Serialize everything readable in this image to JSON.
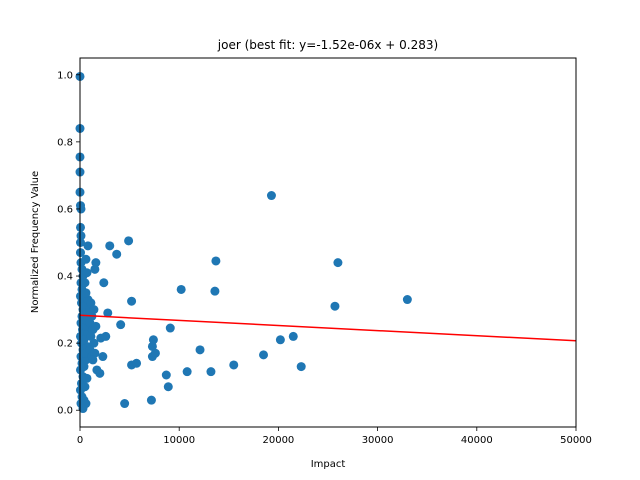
{
  "chart_data": {
    "type": "scatter",
    "title": "joer (best fit: y=-1.52e-06x + 0.283)",
    "xlabel": "Impact",
    "ylabel": "Normalized Frequency Value",
    "xlim": [
      0,
      50000
    ],
    "ylim": [
      -0.05,
      1.05
    ],
    "xticks": [
      0,
      10000,
      20000,
      30000,
      40000,
      50000
    ],
    "yticks": [
      0.0,
      0.2,
      0.4,
      0.6,
      0.8,
      1.0
    ],
    "xtick_labels": [
      "0",
      "10000",
      "20000",
      "30000",
      "40000",
      "50000"
    ],
    "ytick_labels": [
      "0.0",
      "0.2",
      "0.4",
      "0.6",
      "0.8",
      "1.0"
    ],
    "grid": false,
    "colors": {
      "points": "#1f77b4",
      "fit_line": "#ff0000"
    },
    "fit_line": {
      "slope": -1.52e-06,
      "intercept": 0.283
    },
    "points": [
      [
        0,
        0.995
      ],
      [
        0,
        0.84
      ],
      [
        0,
        0.755
      ],
      [
        0,
        0.71
      ],
      [
        0,
        0.65
      ],
      [
        50,
        0.61
      ],
      [
        100,
        0.6
      ],
      [
        50,
        0.545
      ],
      [
        100,
        0.52
      ],
      [
        50,
        0.5
      ],
      [
        50,
        0.47
      ],
      [
        100,
        0.44
      ],
      [
        200,
        0.42
      ],
      [
        300,
        0.4
      ],
      [
        100,
        0.38
      ],
      [
        200,
        0.36
      ],
      [
        50,
        0.34
      ],
      [
        150,
        0.32
      ],
      [
        300,
        0.3
      ],
      [
        200,
        0.28
      ],
      [
        100,
        0.26
      ],
      [
        250,
        0.24
      ],
      [
        50,
        0.22
      ],
      [
        150,
        0.2
      ],
      [
        300,
        0.18
      ],
      [
        100,
        0.16
      ],
      [
        200,
        0.14
      ],
      [
        50,
        0.12
      ],
      [
        300,
        0.1
      ],
      [
        150,
        0.08
      ],
      [
        50,
        0.06
      ],
      [
        200,
        0.04
      ],
      [
        100,
        0.02
      ],
      [
        300,
        0.005
      ],
      [
        400,
        0.03
      ],
      [
        600,
        0.02
      ],
      [
        500,
        0.07
      ],
      [
        700,
        0.095
      ],
      [
        400,
        0.13
      ],
      [
        600,
        0.15
      ],
      [
        500,
        0.17
      ],
      [
        700,
        0.19
      ],
      [
        400,
        0.21
      ],
      [
        800,
        0.23
      ],
      [
        600,
        0.25
      ],
      [
        500,
        0.27
      ],
      [
        700,
        0.29
      ],
      [
        400,
        0.31
      ],
      [
        800,
        0.33
      ],
      [
        600,
        0.35
      ],
      [
        500,
        0.38
      ],
      [
        700,
        0.41
      ],
      [
        600,
        0.45
      ],
      [
        800,
        0.49
      ],
      [
        1000,
        0.3
      ],
      [
        1200,
        0.28
      ],
      [
        1000,
        0.26
      ],
      [
        1300,
        0.24
      ],
      [
        1100,
        0.22
      ],
      [
        1400,
        0.2
      ],
      [
        1000,
        0.18
      ],
      [
        1200,
        0.16
      ],
      [
        1500,
        0.17
      ],
      [
        1300,
        0.15
      ],
      [
        1100,
        0.32
      ],
      [
        1400,
        0.3
      ],
      [
        1600,
        0.25
      ],
      [
        1500,
        0.42
      ],
      [
        1600,
        0.44
      ],
      [
        1700,
        0.12
      ],
      [
        2000,
        0.11
      ],
      [
        2100,
        0.215
      ],
      [
        2300,
        0.16
      ],
      [
        2400,
        0.38
      ],
      [
        2600,
        0.22
      ],
      [
        2800,
        0.29
      ],
      [
        3000,
        0.49
      ],
      [
        3700,
        0.465
      ],
      [
        4100,
        0.255
      ],
      [
        4500,
        0.02
      ],
      [
        4900,
        0.505
      ],
      [
        5200,
        0.325
      ],
      [
        5200,
        0.135
      ],
      [
        5700,
        0.14
      ],
      [
        7200,
        0.03
      ],
      [
        7300,
        0.19
      ],
      [
        7400,
        0.21
      ],
      [
        7300,
        0.16
      ],
      [
        7600,
        0.17
      ],
      [
        8700,
        0.105
      ],
      [
        8900,
        0.07
      ],
      [
        9100,
        0.245
      ],
      [
        10200,
        0.36
      ],
      [
        10800,
        0.115
      ],
      [
        12100,
        0.18
      ],
      [
        13200,
        0.115
      ],
      [
        13600,
        0.355
      ],
      [
        13700,
        0.445
      ],
      [
        15500,
        0.135
      ],
      [
        18500,
        0.165
      ],
      [
        19300,
        0.64
      ],
      [
        20200,
        0.21
      ],
      [
        21500,
        0.22
      ],
      [
        22300,
        0.13
      ],
      [
        25700,
        0.31
      ],
      [
        26000,
        0.44
      ],
      [
        33000,
        0.33
      ]
    ]
  }
}
